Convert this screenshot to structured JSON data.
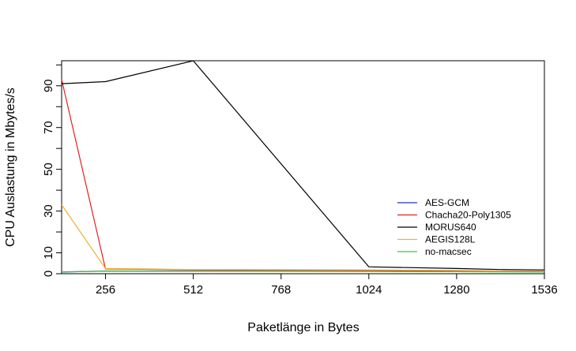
{
  "chart_data": {
    "type": "line",
    "title": "",
    "xlabel": "Paketlänge in Bytes",
    "ylabel": "CPU Auslastung in Mbytes/s",
    "xlim": [
      128,
      1536
    ],
    "ylim": [
      0,
      102
    ],
    "x_ticks": [
      256,
      512,
      768,
      1024,
      1280,
      1536
    ],
    "x_tick_labels": [
      "256",
      "512",
      "768",
      "1024",
      "1280",
      "1536"
    ],
    "y_ticks": [
      0,
      10,
      30,
      50,
      70,
      90
    ],
    "y_tick_labels": [
      "0",
      "10",
      "30",
      "50",
      "70",
      "90"
    ],
    "y_minor_ticks": [
      20,
      40,
      60,
      80,
      100
    ],
    "grid": false,
    "legend_position": "bottom-right",
    "series": [
      {
        "name": "AES-GCM",
        "color": "#2233bb",
        "x": [
          128,
          256,
          512,
          1024,
          1280,
          1408,
          1536
        ],
        "y": [
          0.8,
          1.3,
          1.3,
          1.2,
          1.0,
          1.0,
          0.9
        ]
      },
      {
        "name": "Chacha20-Poly1305",
        "color": "#dd2222",
        "x": [
          128,
          256,
          512,
          1024,
          1280,
          1408,
          1536
        ],
        "y": [
          93,
          2.3,
          1.8,
          1.6,
          1.5,
          1.3,
          1.2
        ]
      },
      {
        "name": "MORUS640",
        "color": "#000000",
        "x": [
          128,
          256,
          512,
          1024,
          1280,
          1408,
          1536
        ],
        "y": [
          91,
          92,
          102,
          3.3,
          2.5,
          2.0,
          1.8
        ]
      },
      {
        "name": "AEGIS128L",
        "color": "#f0b030",
        "x": [
          128,
          256,
          512,
          1024,
          1280,
          1408,
          1536
        ],
        "y": [
          33,
          2.5,
          2.0,
          1.8,
          1.6,
          1.3,
          1.2
        ]
      },
      {
        "name": "no-macsec",
        "color": "#33cc33",
        "x": [
          128,
          256,
          512,
          1024,
          1280,
          1408,
          1536
        ],
        "y": [
          0.9,
          1.2,
          1.2,
          1.1,
          1.0,
          0.9,
          0.9
        ]
      }
    ]
  }
}
